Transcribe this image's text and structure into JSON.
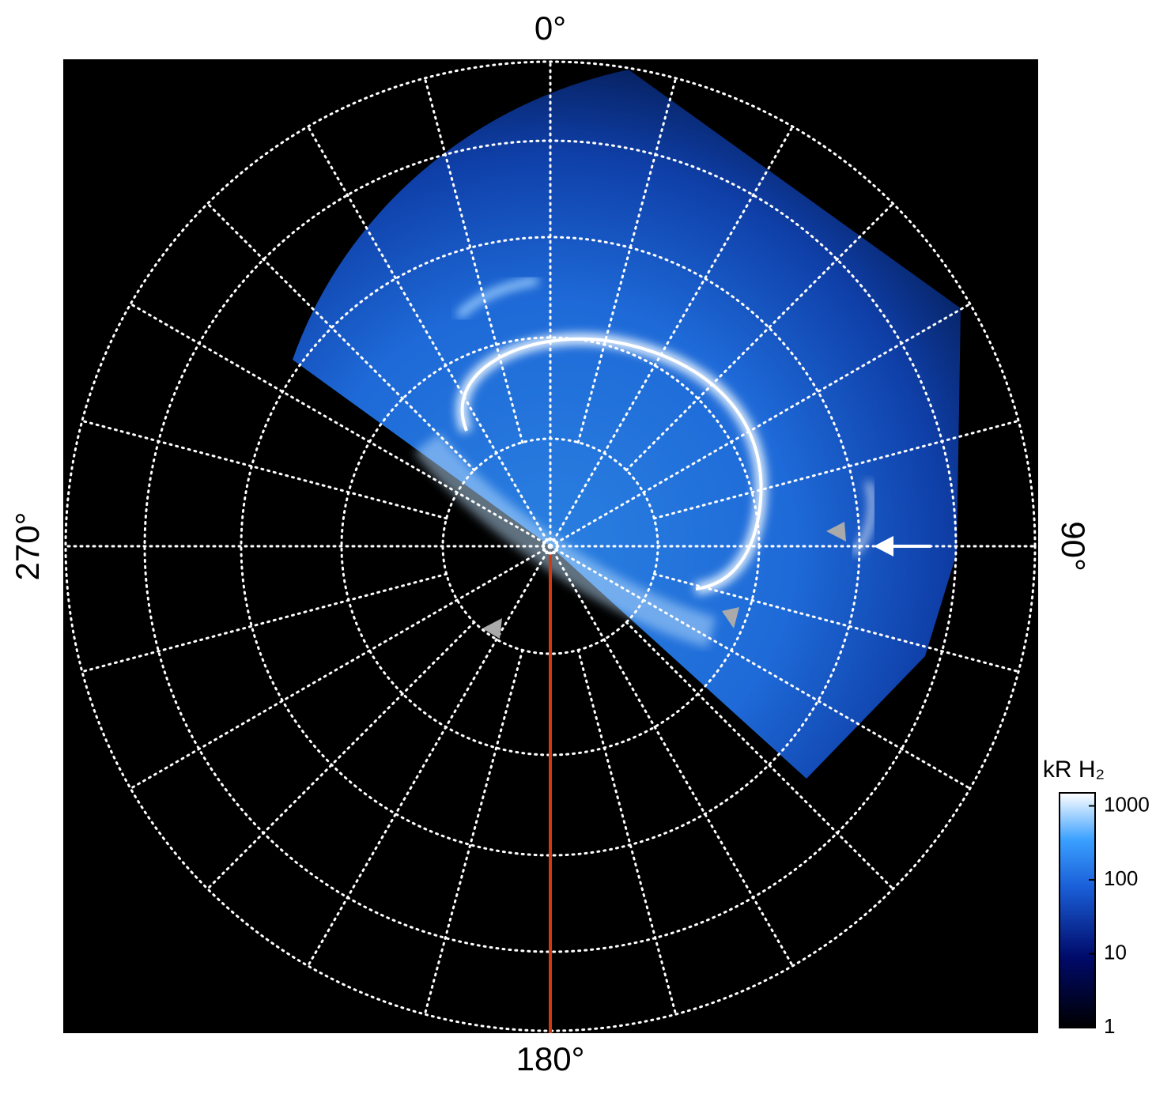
{
  "chart_data": {
    "type": "polar-image",
    "angle_ticks": [
      {
        "value": 0,
        "label": "0°"
      },
      {
        "value": 90,
        "label": "90°"
      },
      {
        "value": 180,
        "label": "180°"
      },
      {
        "value": 270,
        "label": "270°"
      }
    ],
    "colorbar": {
      "title": "kR H₂",
      "log": true,
      "lim": [
        1,
        1500
      ],
      "ticks": [
        1,
        10,
        100,
        1000
      ]
    }
  }
}
